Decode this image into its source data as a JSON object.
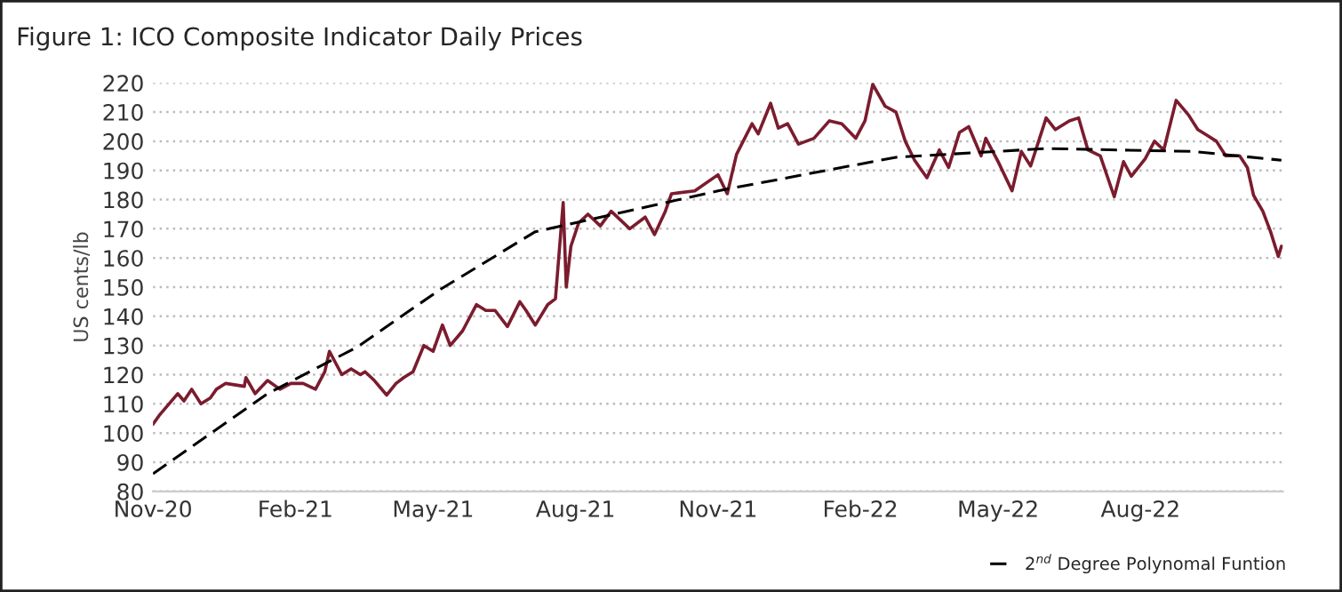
{
  "chart_data": {
    "type": "line",
    "title": "Figure 1: ICO Composite Indicator Daily Prices",
    "ylabel": "US cents/lb",
    "series": [
      {
        "color": "#7b1c2e",
        "line_style": "solid",
        "x": [
          "2020-11-01",
          "2020-11-05",
          "2020-11-17",
          "2020-11-21",
          "2020-11-26",
          "2020-12-02",
          "2020-12-08",
          "2020-12-12",
          "2020-12-18",
          "2020-12-30",
          "2020-12-31",
          "2021-01-06",
          "2021-01-14",
          "2021-01-22",
          "2021-01-29",
          "2021-02-06",
          "2021-02-14",
          "2021-02-20",
          "2021-02-23",
          "2021-03-03",
          "2021-03-09",
          "2021-03-15",
          "2021-03-18",
          "2021-03-24",
          "2021-04-01",
          "2021-04-07",
          "2021-04-12",
          "2021-04-18",
          "2021-04-25",
          "2021-05-01",
          "2021-05-07",
          "2021-05-12",
          "2021-05-20",
          "2021-05-29",
          "2021-06-04",
          "2021-06-10",
          "2021-06-18",
          "2021-06-26",
          "2021-06-30",
          "2021-07-06",
          "2021-07-14",
          "2021-07-19",
          "2021-07-24",
          "2021-07-26",
          "2021-07-29",
          "2021-08-03",
          "2021-08-09",
          "2021-08-17",
          "2021-08-24",
          "2021-09-05",
          "2021-09-15",
          "2021-09-21",
          "2021-09-28",
          "2021-10-02",
          "2021-10-17",
          "2021-11-01",
          "2021-11-07",
          "2021-11-13",
          "2021-11-23",
          "2021-11-27",
          "2021-12-05",
          "2021-12-10",
          "2021-12-16",
          "2021-12-23",
          "2022-01-02",
          "2022-01-12",
          "2022-01-20",
          "2022-01-29",
          "2022-02-04",
          "2022-02-09",
          "2022-02-17",
          "2022-02-24",
          "2022-03-02",
          "2022-03-08",
          "2022-03-16",
          "2022-03-24",
          "2022-03-30",
          "2022-04-06",
          "2022-04-12",
          "2022-04-20",
          "2022-04-23",
          "2022-05-01",
          "2022-05-10",
          "2022-05-16",
          "2022-05-22",
          "2022-06-01",
          "2022-06-07",
          "2022-06-16",
          "2022-06-22",
          "2022-06-28",
          "2022-07-06",
          "2022-07-15",
          "2022-07-21",
          "2022-07-26",
          "2022-08-04",
          "2022-08-10",
          "2022-08-16",
          "2022-08-24",
          "2022-09-01",
          "2022-09-07",
          "2022-09-13",
          "2022-09-19",
          "2022-09-25",
          "2022-10-04",
          "2022-10-09",
          "2022-10-13",
          "2022-10-19",
          "2022-10-24",
          "2022-10-29",
          "2022-10-31"
        ],
        "values": [
          103,
          106,
          113.5,
          111,
          115,
          110,
          112,
          115,
          117,
          116,
          119,
          113.5,
          118,
          115,
          117,
          117,
          115,
          121,
          128,
          120,
          122,
          120,
          121,
          118,
          113,
          117,
          119,
          121,
          130,
          128,
          137,
          130,
          135,
          144,
          142,
          142,
          136.5,
          145,
          142,
          137,
          144,
          146,
          179,
          150,
          164,
          172,
          175,
          171,
          176,
          170,
          174,
          168,
          176,
          182,
          183,
          188.5,
          182,
          195.5,
          206,
          202.5,
          213,
          204.5,
          206,
          199,
          201,
          207,
          206,
          201,
          207,
          219.5,
          212,
          210,
          200,
          193.5,
          187.5,
          197,
          191,
          203,
          205,
          195,
          201,
          193,
          183,
          196.5,
          191.5,
          208,
          204,
          207,
          208,
          197,
          195,
          181,
          193,
          188,
          194,
          200,
          197,
          214,
          209,
          204,
          202,
          200,
          195,
          195,
          191,
          181.5,
          176,
          169,
          160.5,
          164
        ]
      },
      {
        "name": "2$^{nd}$ Degree Polynomal Funtion",
        "color": "#000000",
        "line_style": "dashed",
        "x": [
          "2020-11-01",
          "2021-01-14",
          "2021-03-13",
          "2021-05-05",
          "2021-07-06",
          "2021-11-01",
          "2022-02-24",
          "2022-06-01",
          "2022-09-04",
          "2022-10-31"
        ],
        "values": [
          86,
          113.5,
          129.5,
          149,
          169,
          183,
          194.5,
          197.5,
          196.5,
          193.5
        ]
      }
    ],
    "xlim": [
      "2020-11-01",
      "2022-11-01"
    ],
    "xticks": [
      {
        "value": "2020-11-01",
        "label": "Nov-20"
      },
      {
        "value": "2021-02-01",
        "label": "Feb-21"
      },
      {
        "value": "2021-05-01",
        "label": "May-21"
      },
      {
        "value": "2021-08-01",
        "label": "Aug-21"
      },
      {
        "value": "2021-11-01",
        "label": "Nov-21"
      },
      {
        "value": "2022-02-01",
        "label": "Feb-22"
      },
      {
        "value": "2022-05-01",
        "label": "May-22"
      },
      {
        "value": "2022-08-01",
        "label": "Aug-22"
      }
    ],
    "ylim": [
      80,
      220
    ],
    "yticks": [
      80,
      90,
      100,
      110,
      120,
      130,
      140,
      150,
      160,
      170,
      180,
      190,
      200,
      210,
      220
    ],
    "grid": "y",
    "legend": "bottom right"
  }
}
